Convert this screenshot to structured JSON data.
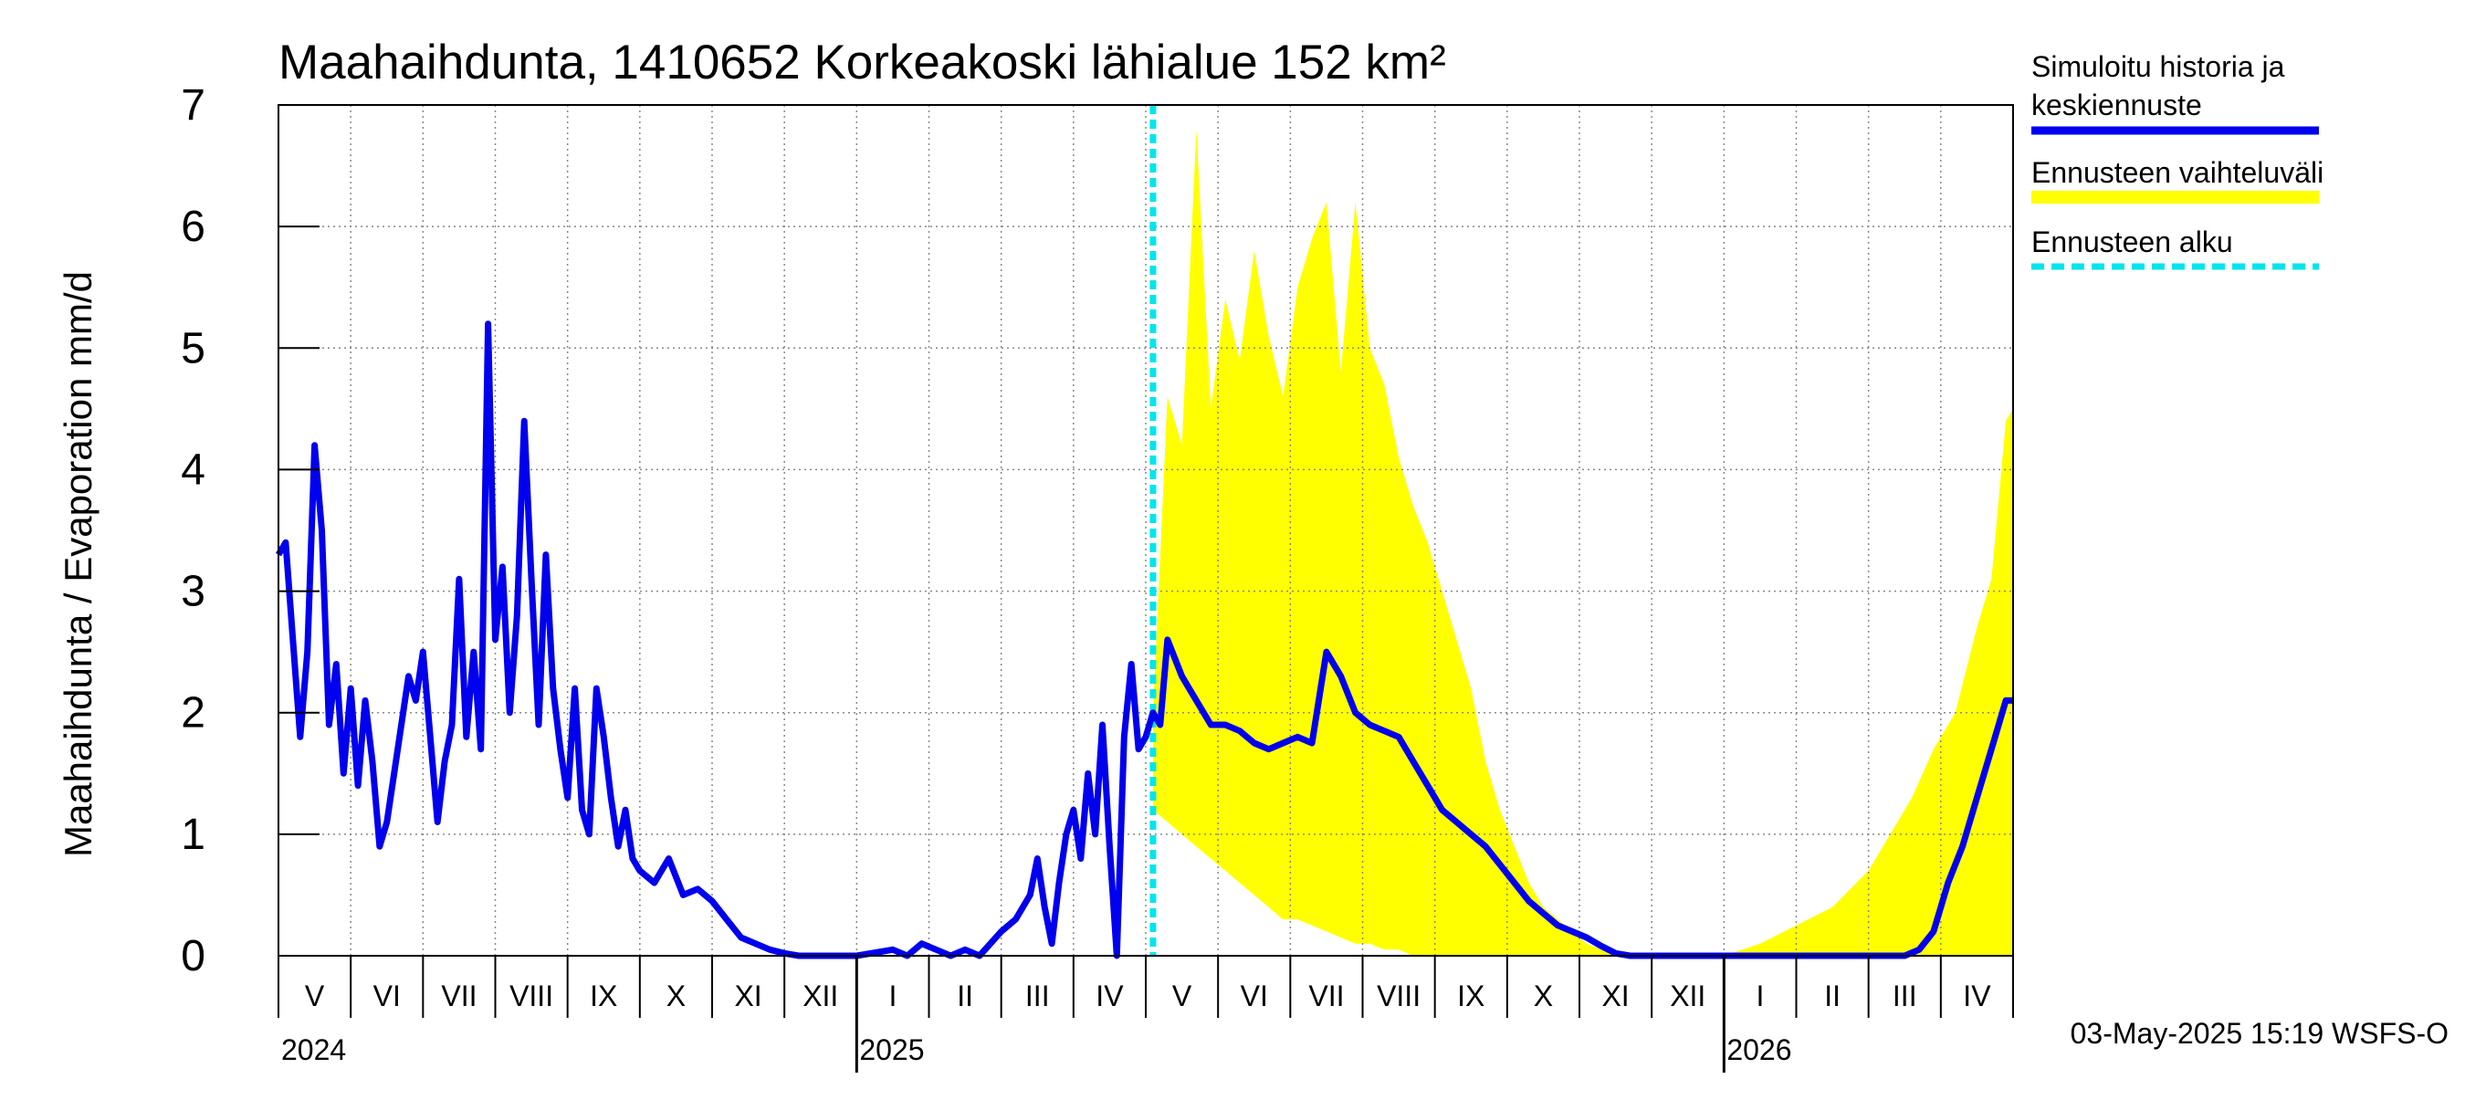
{
  "chart_data": {
    "type": "area",
    "title": "Maahaihdunta, 1410652 Korkeakoski lähialue 152 km²",
    "ylabel": "Maahaihdunta / Evaporation   mm/d",
    "xlabel": "",
    "ylim": [
      0,
      7
    ],
    "yticks": [
      "0",
      "1",
      "2",
      "3",
      "4",
      "5",
      "6",
      "7"
    ],
    "grid": true,
    "x_domain_months": [
      0,
      24
    ],
    "month_labels": [
      {
        "label": "V",
        "x": 0.5
      },
      {
        "label": "VI",
        "x": 1.5
      },
      {
        "label": "VII",
        "x": 2.5
      },
      {
        "label": "VIII",
        "x": 3.5
      },
      {
        "label": "IX",
        "x": 4.5
      },
      {
        "label": "X",
        "x": 5.5
      },
      {
        "label": "XI",
        "x": 6.5
      },
      {
        "label": "XII",
        "x": 7.5
      },
      {
        "label": "I",
        "x": 8.5
      },
      {
        "label": "II",
        "x": 9.5
      },
      {
        "label": "III",
        "x": 10.5
      },
      {
        "label": "IV",
        "x": 11.5
      },
      {
        "label": "V",
        "x": 12.5
      },
      {
        "label": "VI",
        "x": 13.5
      },
      {
        "label": "VII",
        "x": 14.5
      },
      {
        "label": "VIII",
        "x": 15.5
      },
      {
        "label": "IX",
        "x": 16.5
      },
      {
        "label": "X",
        "x": 17.5
      },
      {
        "label": "XI",
        "x": 18.5
      },
      {
        "label": "XII",
        "x": 19.5
      },
      {
        "label": "I",
        "x": 20.5
      },
      {
        "label": "II",
        "x": 21.5
      },
      {
        "label": "III",
        "x": 22.5
      },
      {
        "label": "IV",
        "x": 23.5
      }
    ],
    "year_labels": [
      {
        "label": "2024",
        "x": 0
      },
      {
        "label": "2025",
        "x": 8
      },
      {
        "label": "2026",
        "x": 20
      }
    ],
    "year_boundaries": [
      8,
      20
    ],
    "forecast_start": 12.1,
    "legend_position": "right",
    "legend": [
      {
        "text": "Simuloitu historia ja",
        "text2": "keskiennuste",
        "color": "#0000ee",
        "style": "solid"
      },
      {
        "text": "Ennusteen vaihteluväli",
        "color": "#ffff00",
        "style": "band"
      },
      {
        "text": "Ennusteen alku",
        "color": "#00e5ee",
        "style": "dashed"
      }
    ],
    "timestamp": "03-May-2025 15:19 WSFS-O",
    "series": [
      {
        "name": "Simuloitu historia ja keskiennuste",
        "color": "#0000ee",
        "x": [
          0,
          0.1,
          0.2,
          0.3,
          0.4,
          0.5,
          0.6,
          0.7,
          0.8,
          0.9,
          1.0,
          1.1,
          1.2,
          1.3,
          1.4,
          1.5,
          1.6,
          1.7,
          1.8,
          1.9,
          2.0,
          2.1,
          2.2,
          2.3,
          2.4,
          2.5,
          2.6,
          2.7,
          2.8,
          2.9,
          3.0,
          3.1,
          3.2,
          3.3,
          3.4,
          3.5,
          3.6,
          3.7,
          3.8,
          3.9,
          4.0,
          4.1,
          4.2,
          4.3,
          4.4,
          4.5,
          4.6,
          4.7,
          4.8,
          4.9,
          5.0,
          5.2,
          5.4,
          5.6,
          5.8,
          6.0,
          6.2,
          6.4,
          6.6,
          6.8,
          7.0,
          7.2,
          7.5,
          8.0,
          8.5,
          8.7,
          8.9,
          9.1,
          9.3,
          9.5,
          9.7,
          10.0,
          10.2,
          10.4,
          10.5,
          10.6,
          10.7,
          10.8,
          10.9,
          11.0,
          11.1,
          11.2,
          11.3,
          11.4,
          11.5,
          11.6,
          11.7,
          11.8,
          11.9,
          12.0,
          12.1,
          12.2,
          12.3,
          12.5,
          12.7,
          12.9,
          13.1,
          13.3,
          13.5,
          13.7,
          13.9,
          14.1,
          14.3,
          14.5,
          14.7,
          14.9,
          15.1,
          15.3,
          15.5,
          15.7,
          15.9,
          16.1,
          16.3,
          16.5,
          16.7,
          16.9,
          17.1,
          17.3,
          17.5,
          17.7,
          17.9,
          18.1,
          18.3,
          18.5,
          18.7,
          18.9,
          19.1,
          19.3,
          19.5,
          20.0,
          20.5,
          21.0,
          21.5,
          22.0,
          22.5,
          22.7,
          22.9,
          23.1,
          23.3,
          23.5,
          23.7,
          23.9,
          24.0
        ],
        "values": [
          3.3,
          3.4,
          2.6,
          1.8,
          2.5,
          4.2,
          3.5,
          1.9,
          2.4,
          1.5,
          2.2,
          1.4,
          2.1,
          1.6,
          0.9,
          1.1,
          1.5,
          1.9,
          2.3,
          2.1,
          2.5,
          1.8,
          1.1,
          1.6,
          1.9,
          3.1,
          1.8,
          2.5,
          1.7,
          5.2,
          2.6,
          3.2,
          2.0,
          2.8,
          4.4,
          3.1,
          1.9,
          3.3,
          2.2,
          1.7,
          1.3,
          2.2,
          1.2,
          1.0,
          2.2,
          1.8,
          1.3,
          0.9,
          1.2,
          0.8,
          0.7,
          0.6,
          0.8,
          0.5,
          0.55,
          0.45,
          0.3,
          0.15,
          0.1,
          0.05,
          0.02,
          0.0,
          0.0,
          0.0,
          0.05,
          0.0,
          0.1,
          0.05,
          0.0,
          0.05,
          0.0,
          0.2,
          0.3,
          0.5,
          0.8,
          0.4,
          0.1,
          0.6,
          1.0,
          1.2,
          0.8,
          1.5,
          1.0,
          1.9,
          0.9,
          0.0,
          1.8,
          2.4,
          1.7,
          1.8,
          2.0,
          1.9,
          2.6,
          2.3,
          2.1,
          1.9,
          1.9,
          1.85,
          1.75,
          1.7,
          1.75,
          1.8,
          1.75,
          2.5,
          2.3,
          2.0,
          1.9,
          1.85,
          1.8,
          1.6,
          1.4,
          1.2,
          1.1,
          1.0,
          0.9,
          0.75,
          0.6,
          0.45,
          0.35,
          0.25,
          0.2,
          0.15,
          0.08,
          0.02,
          0.0,
          0.0,
          0.0,
          0.0,
          0.0,
          0.0,
          0.0,
          0.0,
          0.0,
          0.0,
          0.0,
          0.05,
          0.2,
          0.6,
          0.9,
          1.3,
          1.7,
          2.1,
          2.1
        ]
      },
      {
        "name": "Ennusteen vaihteluväli",
        "color": "#ffff00",
        "x": [
          12.1,
          12.3,
          12.5,
          12.7,
          12.9,
          13.1,
          13.3,
          13.5,
          13.7,
          13.9,
          14.1,
          14.3,
          14.5,
          14.7,
          14.9,
          15.1,
          15.3,
          15.5,
          15.7,
          15.9,
          16.1,
          16.3,
          16.5,
          16.7,
          16.9,
          17.1,
          17.3,
          17.5,
          17.7,
          17.9,
          18.1,
          18.3,
          18.5,
          18.7,
          18.9,
          19.1,
          19.3,
          19.5,
          20.0,
          20.5,
          21.0,
          21.5,
          22.0,
          22.3,
          22.6,
          22.9,
          23.2,
          23.5,
          23.7,
          23.9,
          24.0
        ],
        "lower": [
          1.2,
          1.1,
          1.0,
          0.9,
          0.8,
          0.7,
          0.6,
          0.5,
          0.4,
          0.3,
          0.3,
          0.25,
          0.2,
          0.15,
          0.1,
          0.1,
          0.05,
          0.05,
          0.0,
          0.0,
          0.0,
          0.0,
          0.0,
          0.0,
          0.0,
          0.0,
          0.0,
          0.0,
          0.0,
          0.0,
          0.0,
          0.0,
          0.0,
          0.0,
          0.0,
          0.0,
          0.0,
          0.0,
          0.0,
          0.0,
          0.0,
          0.0,
          0.0,
          0.0,
          0.0,
          0.0,
          0.0,
          0.0,
          0.0,
          0.0,
          0.0
        ],
        "upper": [
          2.0,
          4.6,
          4.2,
          6.8,
          4.5,
          5.4,
          4.9,
          5.8,
          5.1,
          4.6,
          5.5,
          5.9,
          6.2,
          4.8,
          6.2,
          5.0,
          4.7,
          4.1,
          3.7,
          3.4,
          3.0,
          2.6,
          2.2,
          1.6,
          1.2,
          0.9,
          0.6,
          0.4,
          0.3,
          0.2,
          0.1,
          0.05,
          0.02,
          0.0,
          0.0,
          0.0,
          0.0,
          0.0,
          0.0,
          0.1,
          0.25,
          0.4,
          0.7,
          1.0,
          1.3,
          1.7,
          2.0,
          2.7,
          3.1,
          4.4,
          4.5
        ]
      }
    ]
  }
}
